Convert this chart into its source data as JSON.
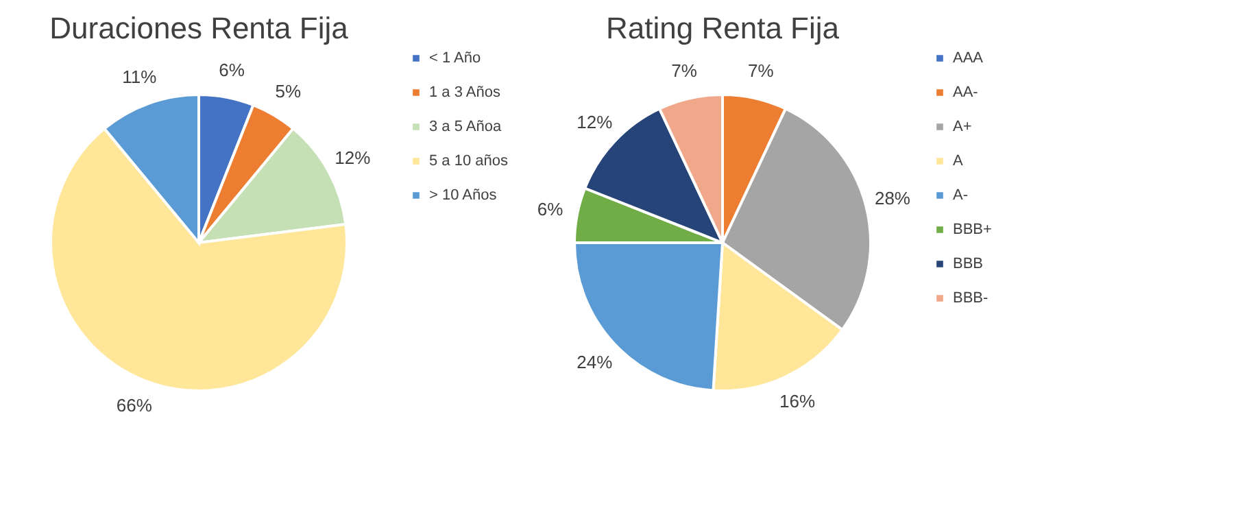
{
  "chart_data": [
    {
      "type": "pie",
      "title": "Duraciones Renta Fija",
      "categories": [
        "< 1 Año",
        "1 a 3 Años",
        "3 a 5 Añoa",
        "5 a 10 años",
        "> 10 Años"
      ],
      "values": [
        6,
        5,
        12,
        66,
        11
      ],
      "colors": [
        "#4472c4",
        "#ed7d31",
        "#c5e0b4",
        "#ffe699",
        "#5b9bd5"
      ],
      "value_labels": [
        "6%",
        "5%",
        "12%",
        "66%",
        "11%"
      ],
      "legend": "right"
    },
    {
      "type": "pie",
      "title": "Rating Renta Fija",
      "categories": [
        "AAA",
        "AA-",
        "A+",
        "A",
        "A-",
        "BBB+",
        "BBB",
        "BBB-"
      ],
      "values": [
        0,
        7,
        28,
        16,
        24,
        6,
        12,
        7
      ],
      "colors": [
        "#4472c4",
        "#ed7d31",
        "#a5a5a5",
        "#ffe699",
        "#5b9bd5",
        "#70ad47",
        "#264478",
        "#f1a78a"
      ],
      "value_labels": [
        null,
        "7%",
        "28%",
        "16%",
        "24%",
        "6%",
        "12%",
        "7%"
      ],
      "legend": "right"
    }
  ]
}
